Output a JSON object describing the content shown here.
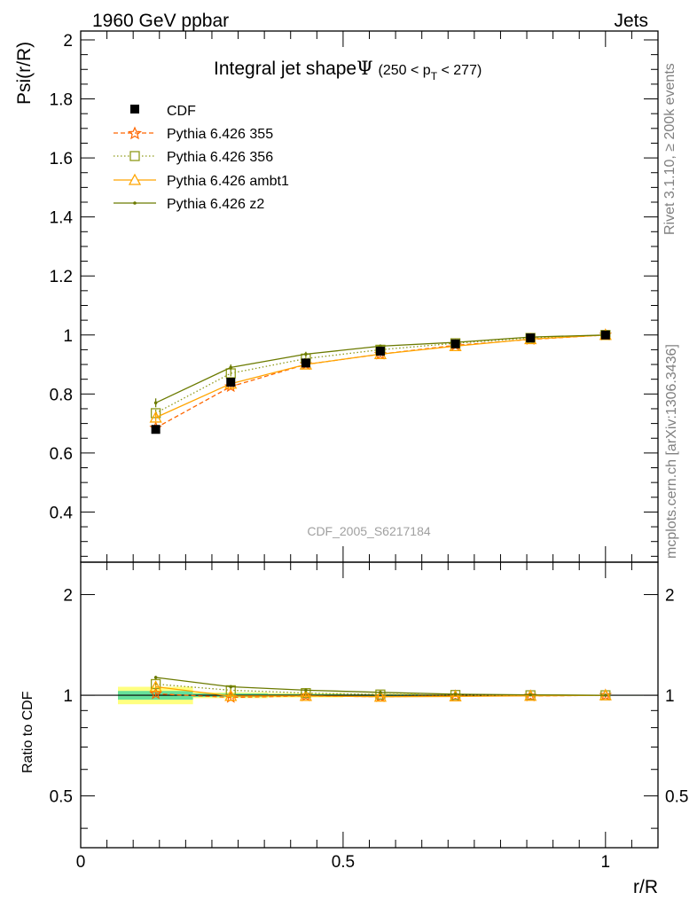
{
  "header": {
    "left": "1960 GeV ppbar",
    "right": "Jets"
  },
  "side_labels": {
    "rivet": "Rivet 3.1.10, ≥ 200k events",
    "mcplots": "mcplots.cern.ch [arXiv:1306.3436]"
  },
  "colors": {
    "cdf": "#000000",
    "p355": "#ff6600",
    "p356": "#8f9a1a",
    "ambt1": "#ffa500",
    "z2": "#6b7a00",
    "band_yellow": "#ffff80",
    "band_green": "#66e09a"
  },
  "chart_data": [
    {
      "type": "line",
      "title_main": "Integral jet shape",
      "title_symbol": "Ψ",
      "title_range_prefix": "(250 < p",
      "title_range_sub": "T",
      "title_range_suffix": " < 277)",
      "watermark": "CDF_2005_S6217184",
      "ylabel": "Psi(r/R)",
      "xlabel": "r/R",
      "xlim": [
        0,
        1.1
      ],
      "ylim": [
        0.23,
        2.03
      ],
      "yticks": [
        0.4,
        0.6,
        0.8,
        1,
        1.2,
        1.4,
        1.6,
        1.8,
        2
      ],
      "ytick_labels": [
        "0.4",
        "0.6",
        "0.8",
        "1",
        "1.2",
        "1.4",
        "1.6",
        "1.8",
        "2"
      ],
      "x": [
        0.143,
        0.286,
        0.429,
        0.571,
        0.714,
        0.857,
        1.0
      ],
      "series": [
        {
          "name": "CDF",
          "key": "cdf",
          "marker": "square-filled",
          "line": "none",
          "values": [
            0.68,
            0.84,
            0.905,
            0.945,
            0.97,
            0.99,
            1.0
          ],
          "errors": [
            0.01,
            0.01,
            0.008,
            0.006,
            0.004,
            0.002,
            0.0
          ]
        },
        {
          "name": "Pythia 6.426 355",
          "key": "p355",
          "marker": "star",
          "line": "dashed",
          "values": [
            0.685,
            0.825,
            0.9,
            0.935,
            0.965,
            0.985,
            1.0
          ],
          "errors": [
            0.01,
            0.008,
            0.006,
            0.004,
            0.003,
            0.002,
            0.0
          ]
        },
        {
          "name": "Pythia 6.426 356",
          "key": "p356",
          "marker": "square-open",
          "line": "dotted",
          "values": [
            0.735,
            0.87,
            0.92,
            0.95,
            0.972,
            0.99,
            1.0
          ],
          "errors": [
            0.012,
            0.01,
            0.007,
            0.005,
            0.003,
            0.002,
            0.0
          ]
        },
        {
          "name": "Pythia 6.426 ambt1",
          "key": "ambt1",
          "marker": "triangle-open",
          "line": "solid",
          "values": [
            0.72,
            0.835,
            0.9,
            0.935,
            0.962,
            0.986,
            1.0
          ],
          "errors": [
            0.012,
            0.008,
            0.006,
            0.004,
            0.003,
            0.002,
            0.0
          ]
        },
        {
          "name": "Pythia 6.426 z2",
          "key": "z2",
          "marker": "dot",
          "line": "solid",
          "values": [
            0.77,
            0.89,
            0.935,
            0.962,
            0.975,
            0.993,
            1.0
          ],
          "errors": [
            0.015,
            0.01,
            0.008,
            0.006,
            0.004,
            0.003,
            0.0
          ]
        }
      ]
    },
    {
      "type": "line",
      "ylabel": "Ratio to CDF",
      "xlabel": "r/R",
      "xlim": [
        0,
        1.1
      ],
      "ylim": [
        0.35,
        2.5
      ],
      "yscale": "log",
      "yticks": [
        0.5,
        1,
        2
      ],
      "ytick_labels": [
        "0.5",
        "1",
        "2"
      ],
      "xticks": [
        0,
        0.5,
        1
      ],
      "xtick_labels": [
        "0",
        "0.5",
        "1"
      ],
      "x": [
        0.143,
        0.286,
        0.429,
        0.571,
        0.714,
        0.857,
        1.0
      ],
      "band_bins": [
        [
          0.071,
          0.214
        ],
        [
          0.214,
          0.357
        ],
        [
          0.357,
          0.5
        ],
        [
          0.5,
          0.643
        ],
        [
          0.643,
          0.786
        ],
        [
          0.786,
          0.929
        ],
        [
          0.929,
          1.071
        ]
      ],
      "band_outer": [
        0.06,
        0.02,
        0.015,
        0.01,
        0.006,
        0.003,
        0.0
      ],
      "band_inner": [
        0.03,
        0.012,
        0.008,
        0.006,
        0.004,
        0.002,
        0.0
      ],
      "series": [
        {
          "name": "Pythia 6.426 355",
          "key": "p355",
          "values": [
            1.01,
            0.985,
            0.995,
            0.99,
            0.995,
            0.995,
            1.0
          ]
        },
        {
          "name": "Pythia 6.426 356",
          "key": "p356",
          "values": [
            1.08,
            1.035,
            1.015,
            1.005,
            1.002,
            1.0,
            1.0
          ]
        },
        {
          "name": "Pythia 6.426 ambt1",
          "key": "ambt1",
          "values": [
            1.06,
            0.995,
            0.995,
            0.99,
            0.992,
            0.996,
            1.0
          ]
        },
        {
          "name": "Pythia 6.426 z2",
          "key": "z2",
          "values": [
            1.13,
            1.06,
            1.035,
            1.02,
            1.007,
            1.003,
            1.0
          ]
        }
      ]
    }
  ]
}
